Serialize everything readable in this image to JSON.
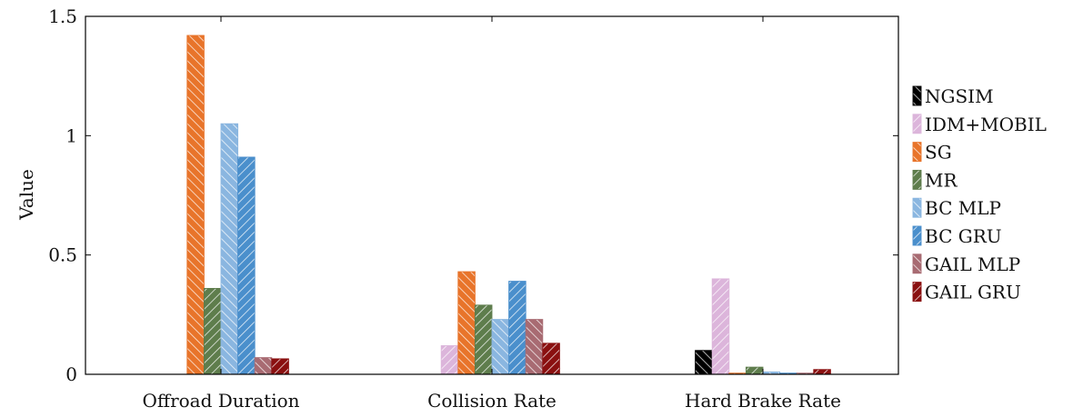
{
  "chart_data": {
    "type": "bar",
    "categories": [
      "Offroad Duration",
      "Collision Rate",
      "Hard Brake Rate"
    ],
    "ylabel": "Value",
    "xlabel": "",
    "ylim": [
      0,
      1.5
    ],
    "yticks": [
      {
        "value": 0,
        "label": "0"
      },
      {
        "value": 0.5,
        "label": "0.5"
      },
      {
        "value": 1,
        "label": "1"
      },
      {
        "value": 1.5,
        "label": "1.5"
      }
    ],
    "grid": false,
    "legend_position": "right",
    "series": [
      {
        "name": "NGSIM",
        "color": "#000000",
        "values": [
          0,
          0,
          0.1
        ]
      },
      {
        "name": "IDM+MOBIL",
        "color": "#dcb5db",
        "values": [
          0,
          0.12,
          0.4
        ]
      },
      {
        "name": "SG",
        "color": "#e8742a",
        "values": [
          1.42,
          0.43,
          0.005
        ]
      },
      {
        "name": "MR",
        "color": "#5e7d4c",
        "values": [
          0.36,
          0.29,
          0.03
        ]
      },
      {
        "name": "BC MLP",
        "color": "#8ab6e0",
        "values": [
          1.05,
          0.23,
          0.01
        ]
      },
      {
        "name": "BC GRU",
        "color": "#4a8fcc",
        "values": [
          0.91,
          0.39,
          0.005
        ]
      },
      {
        "name": "GAIL MLP",
        "color": "#a86b72",
        "values": [
          0.07,
          0.23,
          0.005
        ]
      },
      {
        "name": "GAIL GRU",
        "color": "#8a1010",
        "values": [
          0.065,
          0.13,
          0.02
        ]
      }
    ]
  }
}
